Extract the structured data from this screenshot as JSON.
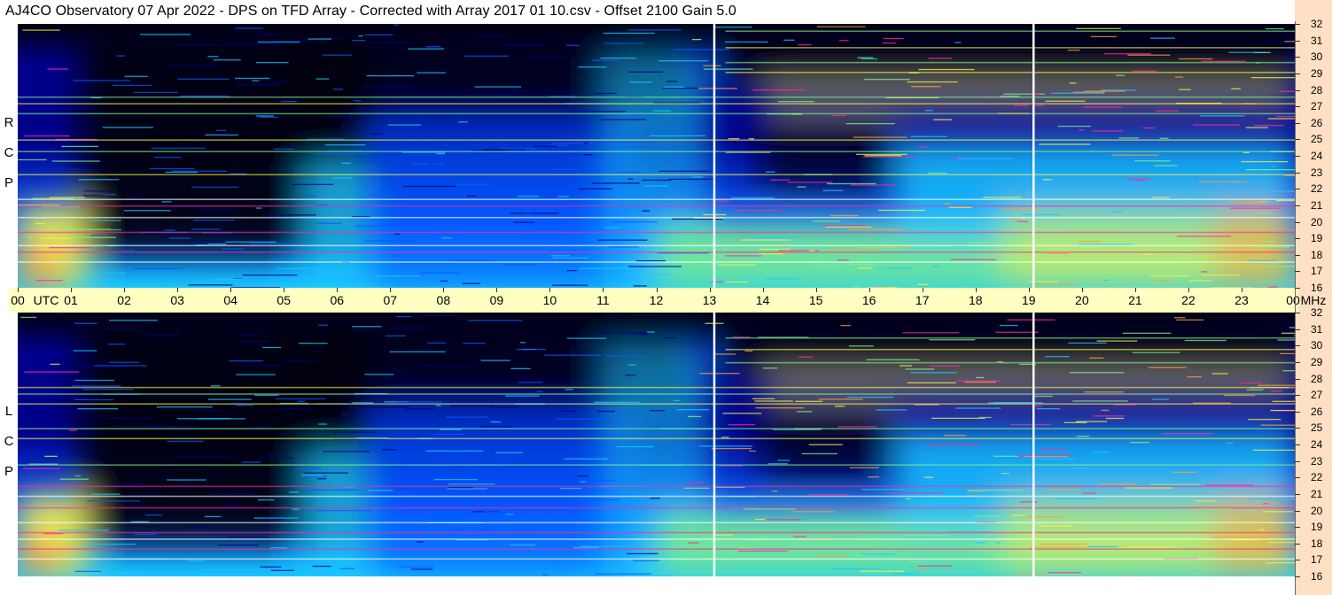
{
  "title": "AJ4CO Observatory  07 Apr 2022  -  DPS on TFD Array  -  Corrected with Array 2017 01 10.csv  -  Offset 2100  Gain 5.0",
  "chart_data": [
    {
      "type": "heatmap",
      "polarization_label": [
        "R",
        "C",
        "P"
      ],
      "x_label": "UTC",
      "x_unit": "UTC",
      "x_ticks": [
        "00",
        "01",
        "02",
        "03",
        "04",
        "05",
        "06",
        "07",
        "08",
        "09",
        "10",
        "11",
        "12",
        "13",
        "14",
        "15",
        "16",
        "17",
        "18",
        "19",
        "20",
        "21",
        "22",
        "23",
        "00"
      ],
      "xlim": [
        0,
        24
      ],
      "y_unit": "MHz",
      "y_ticks": [
        16,
        17,
        18,
        19,
        20,
        21,
        22,
        23,
        24,
        25,
        26,
        27,
        28,
        29,
        30,
        31,
        32
      ],
      "ylim": [
        16,
        32
      ],
      "colormap": [
        "#000010",
        "#00008a",
        "#0a58ff",
        "#18c8ff",
        "#7ff28a",
        "#f2f24a",
        "#ff9d3a",
        "#ff2a9e",
        "#ffffff"
      ],
      "interference_lines_mhz": [
        17.6,
        18.2,
        18.6,
        19.4,
        20.3,
        21.0,
        21.4,
        22.9,
        24.3,
        25.0,
        26.6,
        27.2,
        27.6,
        29.1,
        29.7,
        30.6,
        31.6
      ],
      "vertical_markers_utc": [
        13.07,
        19.07
      ]
    },
    {
      "type": "heatmap",
      "polarization_label": [
        "L",
        "C",
        "P"
      ],
      "x_label": "UTC",
      "x_unit": "UTC",
      "x_ticks": [
        "00",
        "01",
        "02",
        "03",
        "04",
        "05",
        "06",
        "07",
        "08",
        "09",
        "10",
        "11",
        "12",
        "13",
        "14",
        "15",
        "16",
        "17",
        "18",
        "19",
        "20",
        "21",
        "22",
        "23",
        "00"
      ],
      "xlim": [
        0,
        24
      ],
      "y_unit": "MHz",
      "y_ticks": [
        16,
        17,
        18,
        19,
        20,
        21,
        22,
        23,
        24,
        25,
        26,
        27,
        28,
        29,
        30,
        31,
        32
      ],
      "ylim": [
        16,
        32
      ],
      "colormap": [
        "#000010",
        "#00008a",
        "#0a58ff",
        "#18c8ff",
        "#7ff28a",
        "#f2f24a",
        "#ff9d3a",
        "#ff2a9e",
        "#ffffff"
      ],
      "interference_lines_mhz": [
        17.1,
        17.7,
        18.3,
        18.7,
        19.3,
        20.2,
        20.9,
        21.5,
        22.8,
        24.4,
        25.0,
        26.5,
        27.1,
        27.5,
        29.0,
        29.8,
        30.5
      ],
      "vertical_markers_utc": [
        13.07,
        19.07
      ]
    }
  ]
}
